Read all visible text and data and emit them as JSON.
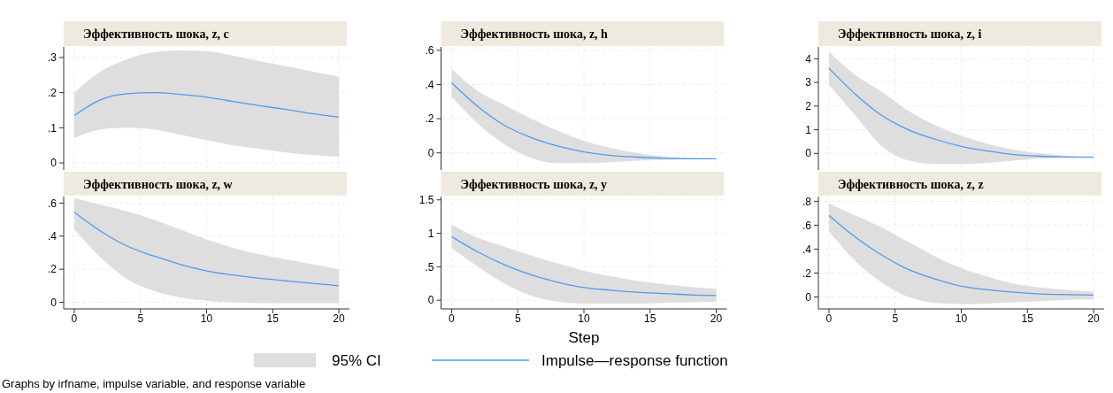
{
  "chart_data": [
    {
      "type": "line",
      "title": "Эффективность шока, z, c",
      "xlim": [
        -0.8,
        20.8
      ],
      "xticks": [
        0,
        5,
        10,
        15,
        20
      ],
      "ylim": [
        -0.02,
        0.33
      ],
      "yticks": [
        0,
        {
          "value": 0.1,
          "label": ".1"
        },
        {
          "value": 0.2,
          "label": ".2"
        },
        {
          "value": 0.3,
          "label": ".3"
        }
      ],
      "grid": true,
      "tick_labels": "y",
      "x": [
        0,
        2,
        4,
        6,
        8,
        10,
        12,
        14,
        16,
        18,
        20
      ],
      "series": [
        {
          "color": "#4f9bf0",
          "values": [
            0.135,
            0.18,
            0.197,
            0.2,
            0.195,
            0.187,
            0.175,
            0.163,
            0.152,
            0.14,
            0.13
          ],
          "lower": [
            0.07,
            0.095,
            0.1,
            0.095,
            0.08,
            0.065,
            0.05,
            0.04,
            0.03,
            0.022,
            0.018
          ],
          "upper": [
            0.2,
            0.26,
            0.295,
            0.315,
            0.32,
            0.318,
            0.305,
            0.29,
            0.275,
            0.26,
            0.245
          ]
        }
      ]
    },
    {
      "type": "line",
      "title": "Эффективность шока, z, h",
      "xlim": [
        -0.8,
        20.8
      ],
      "xticks": [
        0,
        5,
        10,
        15,
        20
      ],
      "ylim": [
        -0.1,
        0.62
      ],
      "yticks": [
        0,
        {
          "value": 0.2,
          "label": ".2"
        },
        {
          "value": 0.4,
          "label": ".4"
        },
        {
          "value": 0.6,
          "label": ".6"
        }
      ],
      "grid": true,
      "tick_labels": "y",
      "x": [
        0,
        2,
        4,
        6,
        8,
        10,
        12,
        14,
        16,
        18,
        20
      ],
      "series": [
        {
          "color": "#4f9bf0",
          "values": [
            0.41,
            0.27,
            0.16,
            0.09,
            0.04,
            0.005,
            -0.015,
            -0.025,
            -0.032,
            -0.035,
            -0.035
          ],
          "lower": [
            0.33,
            0.17,
            0.05,
            -0.03,
            -0.06,
            -0.06,
            -0.055,
            -0.045,
            -0.04,
            -0.037,
            -0.036
          ],
          "upper": [
            0.49,
            0.36,
            0.28,
            0.2,
            0.13,
            0.07,
            0.03,
            0.0,
            -0.02,
            -0.03,
            -0.033
          ]
        }
      ]
    },
    {
      "type": "line",
      "title": "Эффективность шока, z, i",
      "xlim": [
        -0.8,
        20.8
      ],
      "xticks": [
        0,
        5,
        10,
        15,
        20
      ],
      "ylim": [
        -0.7,
        4.5
      ],
      "yticks": [
        0,
        1,
        2,
        3,
        4
      ],
      "grid": true,
      "tick_labels": "y",
      "x": [
        0,
        2,
        4,
        6,
        8,
        10,
        12,
        14,
        16,
        18,
        20
      ],
      "series": [
        {
          "color": "#4f9bf0",
          "values": [
            3.6,
            2.5,
            1.6,
            1.0,
            0.6,
            0.3,
            0.1,
            -0.05,
            -0.12,
            -0.15,
            -0.16
          ],
          "lower": [
            2.9,
            1.6,
            0.3,
            -0.3,
            -0.45,
            -0.45,
            -0.4,
            -0.3,
            -0.22,
            -0.18,
            -0.17
          ],
          "upper": [
            4.3,
            3.3,
            2.6,
            1.8,
            1.2,
            0.75,
            0.4,
            0.15,
            0,
            -0.1,
            -0.15
          ]
        }
      ]
    },
    {
      "type": "line",
      "title": "Эффективность шока, z, w",
      "xlim": [
        -0.8,
        20.8
      ],
      "xticks": [
        0,
        5,
        10,
        15,
        20
      ],
      "ylim": [
        -0.04,
        0.64
      ],
      "yticks": [
        0,
        {
          "value": 0.2,
          "label": ".2"
        },
        {
          "value": 0.4,
          "label": ".4"
        },
        {
          "value": 0.6,
          "label": ".6"
        }
      ],
      "grid": true,
      "x": [
        0,
        2,
        4,
        6,
        8,
        10,
        12,
        14,
        16,
        18,
        20
      ],
      "series": [
        {
          "color": "#4f9bf0",
          "values": [
            0.545,
            0.43,
            0.34,
            0.28,
            0.23,
            0.19,
            0.165,
            0.145,
            0.13,
            0.115,
            0.1
          ],
          "lower": [
            0.44,
            0.27,
            0.14,
            0.07,
            0.03,
            0.01,
            0,
            -0.005,
            -0.005,
            -0.005,
            -0.005
          ],
          "upper": [
            0.63,
            0.59,
            0.55,
            0.5,
            0.44,
            0.38,
            0.33,
            0.29,
            0.26,
            0.23,
            0.2
          ]
        }
      ]
    },
    {
      "type": "line",
      "title": "Эффективность шока, z, y",
      "xlabel": "Step",
      "xlim": [
        -0.8,
        20.8
      ],
      "xticks": [
        0,
        5,
        10,
        15,
        20
      ],
      "ylim": [
        -0.13,
        1.55
      ],
      "yticks": [
        0,
        {
          "value": 0.5,
          "label": ".5"
        },
        1,
        1.5
      ],
      "grid": true,
      "legend": "bottom",
      "annotations": [
        "95% CI",
        "Graphs by irfname, impulse variable, and response variable"
      ],
      "x": [
        0,
        2,
        4,
        6,
        8,
        10,
        12,
        14,
        16,
        18,
        20
      ],
      "series": [
        {
          "name": "Impulse—response function",
          "color": "#4f9bf0",
          "values": [
            0.95,
            0.72,
            0.53,
            0.38,
            0.27,
            0.19,
            0.15,
            0.12,
            0.1,
            0.08,
            0.07
          ],
          "lower": [
            0.78,
            0.5,
            0.25,
            0.07,
            -0.02,
            -0.05,
            -0.05,
            -0.05,
            -0.04,
            -0.03,
            -0.02
          ],
          "upper": [
            1.13,
            0.93,
            0.8,
            0.67,
            0.55,
            0.44,
            0.36,
            0.29,
            0.24,
            0.2,
            0.17
          ]
        }
      ]
    },
    {
      "type": "line",
      "title": "Эффективность шока, z, z",
      "xlim": [
        -0.8,
        20.8
      ],
      "xticks": [
        0,
        5,
        10,
        15,
        20
      ],
      "ylim": [
        -0.1,
        0.84
      ],
      "yticks": [
        0,
        {
          "value": 0.2,
          "label": ".2"
        },
        {
          "value": 0.4,
          "label": ".4"
        },
        {
          "value": 0.6,
          "label": ".6"
        },
        {
          "value": 0.8,
          "label": ".8"
        }
      ],
      "grid": true,
      "x": [
        0,
        2,
        4,
        6,
        8,
        10,
        12,
        14,
        16,
        18,
        20
      ],
      "series": [
        {
          "color": "#4f9bf0",
          "values": [
            0.68,
            0.5,
            0.35,
            0.23,
            0.15,
            0.09,
            0.06,
            0.04,
            0.025,
            0.02,
            0.015
          ],
          "lower": [
            0.55,
            0.3,
            0.12,
            0,
            -0.05,
            -0.06,
            -0.055,
            -0.045,
            -0.035,
            -0.025,
            -0.02
          ],
          "upper": [
            0.78,
            0.68,
            0.58,
            0.46,
            0.34,
            0.24,
            0.17,
            0.11,
            0.08,
            0.06,
            0.045
          ]
        }
      ]
    }
  ]
}
